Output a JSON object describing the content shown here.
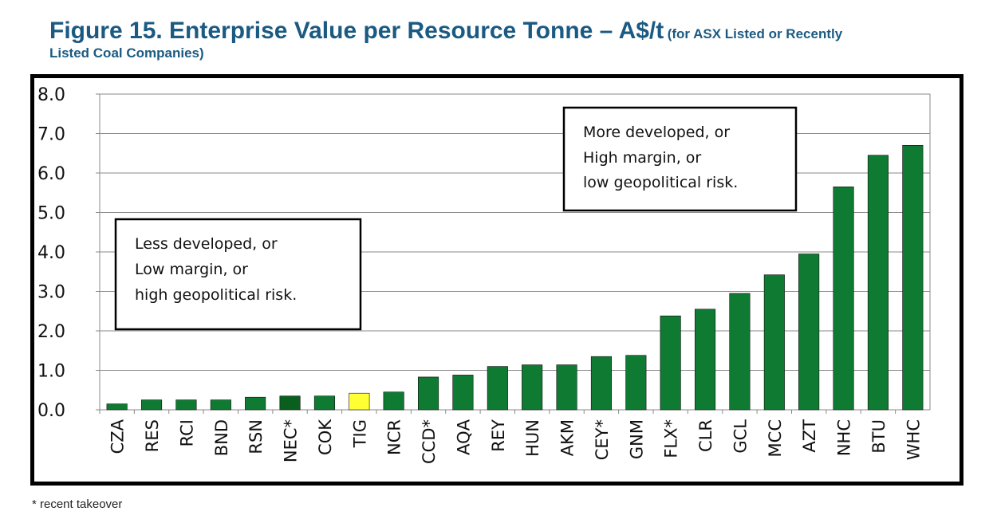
{
  "header": {
    "title_main": "Figure 15. Enterprise Value per Resource Tonne – A$/t",
    "title_sub_line1": "(for ASX Listed or Recently",
    "title_sub_line2": "Listed Coal Companies)"
  },
  "annotations": {
    "left_box": [
      "Less developed, or",
      "Low margin, or",
      "high geopolitical risk."
    ],
    "right_box": [
      "More developed, or",
      "High margin, or",
      "low geopolitical risk."
    ]
  },
  "footnote": "* recent takeover",
  "colors": {
    "bar": "#0f7a32",
    "highlight_dark": "#0a5e1e",
    "highlight_yellow": "#ffff33"
  },
  "chart_data": {
    "type": "bar",
    "categories": [
      "CZA",
      "RES",
      "RCI",
      "BND",
      "RSN",
      "NEC*",
      "COK",
      "TIG",
      "NCR",
      "CCD*",
      "AQA",
      "REY",
      "HUN",
      "AKM",
      "CEY*",
      "GNM",
      "FLX*",
      "CLR",
      "GCL",
      "MCC",
      "AZT",
      "NHC",
      "BTU",
      "WHC"
    ],
    "values": [
      0.15,
      0.25,
      0.25,
      0.25,
      0.32,
      0.35,
      0.35,
      0.42,
      0.45,
      0.83,
      0.88,
      1.1,
      1.14,
      1.14,
      1.35,
      1.38,
      2.38,
      2.55,
      2.95,
      3.42,
      3.95,
      5.65,
      6.45,
      6.7
    ],
    "bar_colors": [
      "#0f7a32",
      "#0f7a32",
      "#0f7a32",
      "#0f7a32",
      "#0f7a32",
      "#0a5e1e",
      "#0f7a32",
      "#ffff33",
      "#0f7a32",
      "#0f7a32",
      "#0f7a32",
      "#0f7a32",
      "#0f7a32",
      "#0f7a32",
      "#0f7a32",
      "#0f7a32",
      "#0f7a32",
      "#0f7a32",
      "#0f7a32",
      "#0f7a32",
      "#0f7a32",
      "#0f7a32",
      "#0f7a32",
      "#0f7a32"
    ],
    "yticks": [
      "0.0",
      "1.0",
      "2.0",
      "3.0",
      "4.0",
      "5.0",
      "6.0",
      "7.0",
      "8.0"
    ],
    "ylim": [
      0,
      8
    ],
    "grid": true,
    "title": "",
    "xlabel": "",
    "ylabel": ""
  }
}
